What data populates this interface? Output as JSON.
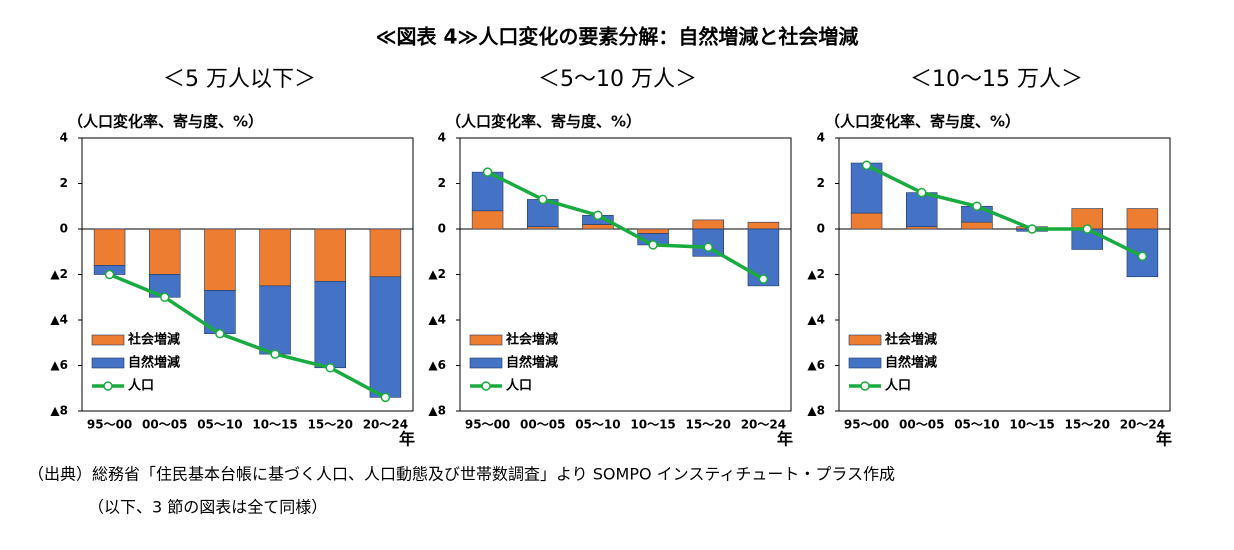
{
  "title": "≪図表 4≫人口変化の要素分解：自然増減と社会増減",
  "source": [
    "（出典）総務省「住民基本台帳に基づく人口、人口動態及び世帯数調査」より SOMPO インスティチュート・プラス作成",
    "（以下、3 節の図表は全て同様）"
  ],
  "chart_data": [
    {
      "type": "bar",
      "title": "＜5 万人以下＞",
      "y_label": "（人口変化率、寄与度、%）",
      "x_label": "年",
      "categories": [
        "95～00",
        "00～05",
        "05～10",
        "10～15",
        "15～20",
        "20～24"
      ],
      "series": [
        {
          "name": "社会増減",
          "type": "bar",
          "color": "#ed7d31",
          "values": [
            -1.6,
            -2.0,
            -2.7,
            -2.5,
            -2.3,
            -2.1
          ]
        },
        {
          "name": "自然増減",
          "type": "bar",
          "color": "#4472c4",
          "values": [
            -0.4,
            -1.0,
            -1.9,
            -3.0,
            -3.8,
            -5.3
          ]
        },
        {
          "name": "人口",
          "type": "line",
          "color": "#1aab40",
          "values": [
            -2.0,
            -3.0,
            -4.6,
            -5.5,
            -6.1,
            -7.4
          ]
        }
      ],
      "ylim": [
        -8,
        4
      ],
      "yticks": [
        4,
        2,
        0,
        {
          "value": -2,
          "label": "▲2"
        },
        {
          "value": -4,
          "label": "▲4"
        },
        {
          "value": -6,
          "label": "▲6"
        },
        {
          "value": -8,
          "label": "▲8"
        }
      ],
      "legend": "lower left"
    },
    {
      "type": "bar",
      "title": "＜5～10 万人＞",
      "y_label": "（人口変化率、寄与度、%）",
      "x_label": "年",
      "categories": [
        "95～00",
        "00～05",
        "05～10",
        "10～15",
        "15～20",
        "20～24"
      ],
      "series": [
        {
          "name": "社会増減",
          "type": "bar",
          "color": "#ed7d31",
          "values": [
            0.8,
            0.1,
            0.2,
            -0.2,
            0.4,
            0.3
          ]
        },
        {
          "name": "自然増減",
          "type": "bar",
          "color": "#4472c4",
          "values": [
            1.7,
            1.2,
            0.4,
            -0.5,
            -1.2,
            -2.5
          ]
        },
        {
          "name": "人口",
          "type": "line",
          "color": "#1aab40",
          "values": [
            2.5,
            1.3,
            0.6,
            -0.7,
            -0.8,
            -2.2
          ]
        }
      ],
      "ylim": [
        -8,
        4
      ],
      "yticks": [
        4,
        2,
        0,
        {
          "value": -2,
          "label": "▲2"
        },
        {
          "value": -4,
          "label": "▲4"
        },
        {
          "value": -6,
          "label": "▲6"
        },
        {
          "value": -8,
          "label": "▲8"
        }
      ],
      "legend": "lower left"
    },
    {
      "type": "bar",
      "title": "＜10～15 万人＞",
      "y_label": "（人口変化率、寄与度、%）",
      "x_label": "年",
      "categories": [
        "95～00",
        "00～05",
        "05～10",
        "10～15",
        "15～20",
        "20～24"
      ],
      "series": [
        {
          "name": "社会増減",
          "type": "bar",
          "color": "#ed7d31",
          "values": [
            0.7,
            0.1,
            0.3,
            0.1,
            0.9,
            0.9
          ]
        },
        {
          "name": "自然増減",
          "type": "bar",
          "color": "#4472c4",
          "values": [
            2.2,
            1.5,
            0.7,
            -0.1,
            -0.9,
            -2.1
          ]
        },
        {
          "name": "人口",
          "type": "line",
          "color": "#1aab40",
          "values": [
            2.8,
            1.6,
            1.0,
            0.0,
            0.0,
            -1.2
          ]
        }
      ],
      "ylim": [
        -8,
        4
      ],
      "yticks": [
        4,
        2,
        0,
        {
          "value": -2,
          "label": "▲2"
        },
        {
          "value": -4,
          "label": "▲4"
        },
        {
          "value": -6,
          "label": "▲6"
        },
        {
          "value": -8,
          "label": "▲8"
        }
      ],
      "legend": "lower left"
    }
  ]
}
